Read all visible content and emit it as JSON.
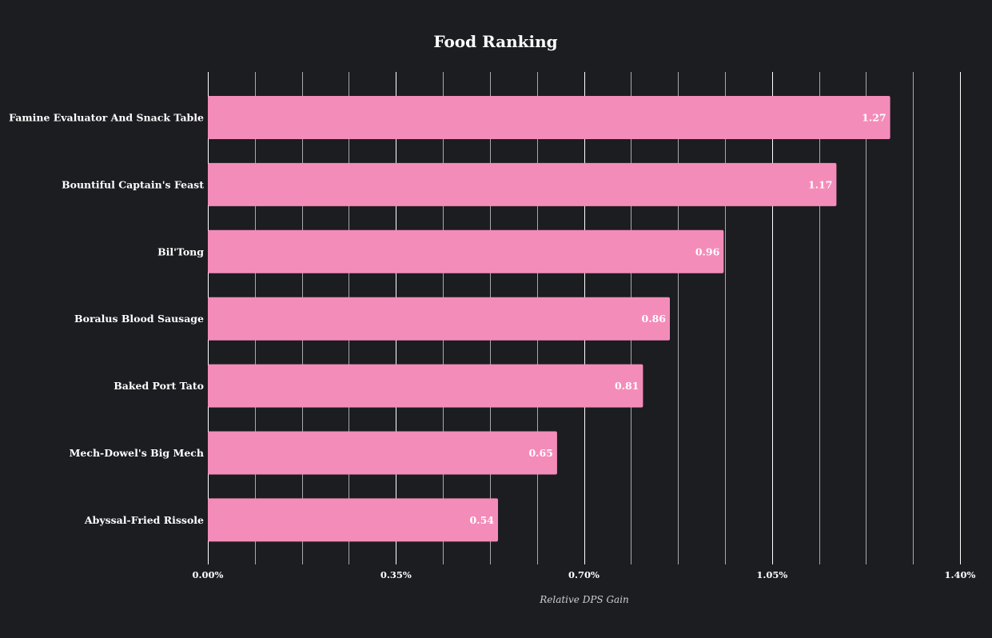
{
  "chart_data": {
    "type": "bar",
    "orientation": "horizontal",
    "title": "Food Ranking",
    "xlabel": "Relative DPS Gain",
    "ylabel": "",
    "categories": [
      "Famine Evaluator And Snack Table",
      "Bountiful Captain's Feast",
      "Bil'Tong",
      "Boralus Blood Sausage",
      "Baked Port Tato",
      "Mech-Dowel's Big Mech",
      "Abyssal-Fried Rissole"
    ],
    "values": [
      1.27,
      1.17,
      0.96,
      0.86,
      0.81,
      0.65,
      0.54
    ],
    "value_labels": [
      "1.27",
      "1.17",
      "0.96",
      "0.86",
      "0.81",
      "0.65",
      "0.54"
    ],
    "xlim": [
      0,
      1.4
    ],
    "xticks": [
      0,
      0.35,
      0.7,
      1.05,
      1.4
    ],
    "xtick_labels": [
      "0.00%",
      "0.35%",
      "0.70%",
      "1.05%",
      "1.40%"
    ],
    "grid": true,
    "legend": "none",
    "colors": {
      "background": "#1c1d21",
      "bar": "#f48cba",
      "text": "#ffffff",
      "grid": "#d8d8d8"
    }
  }
}
